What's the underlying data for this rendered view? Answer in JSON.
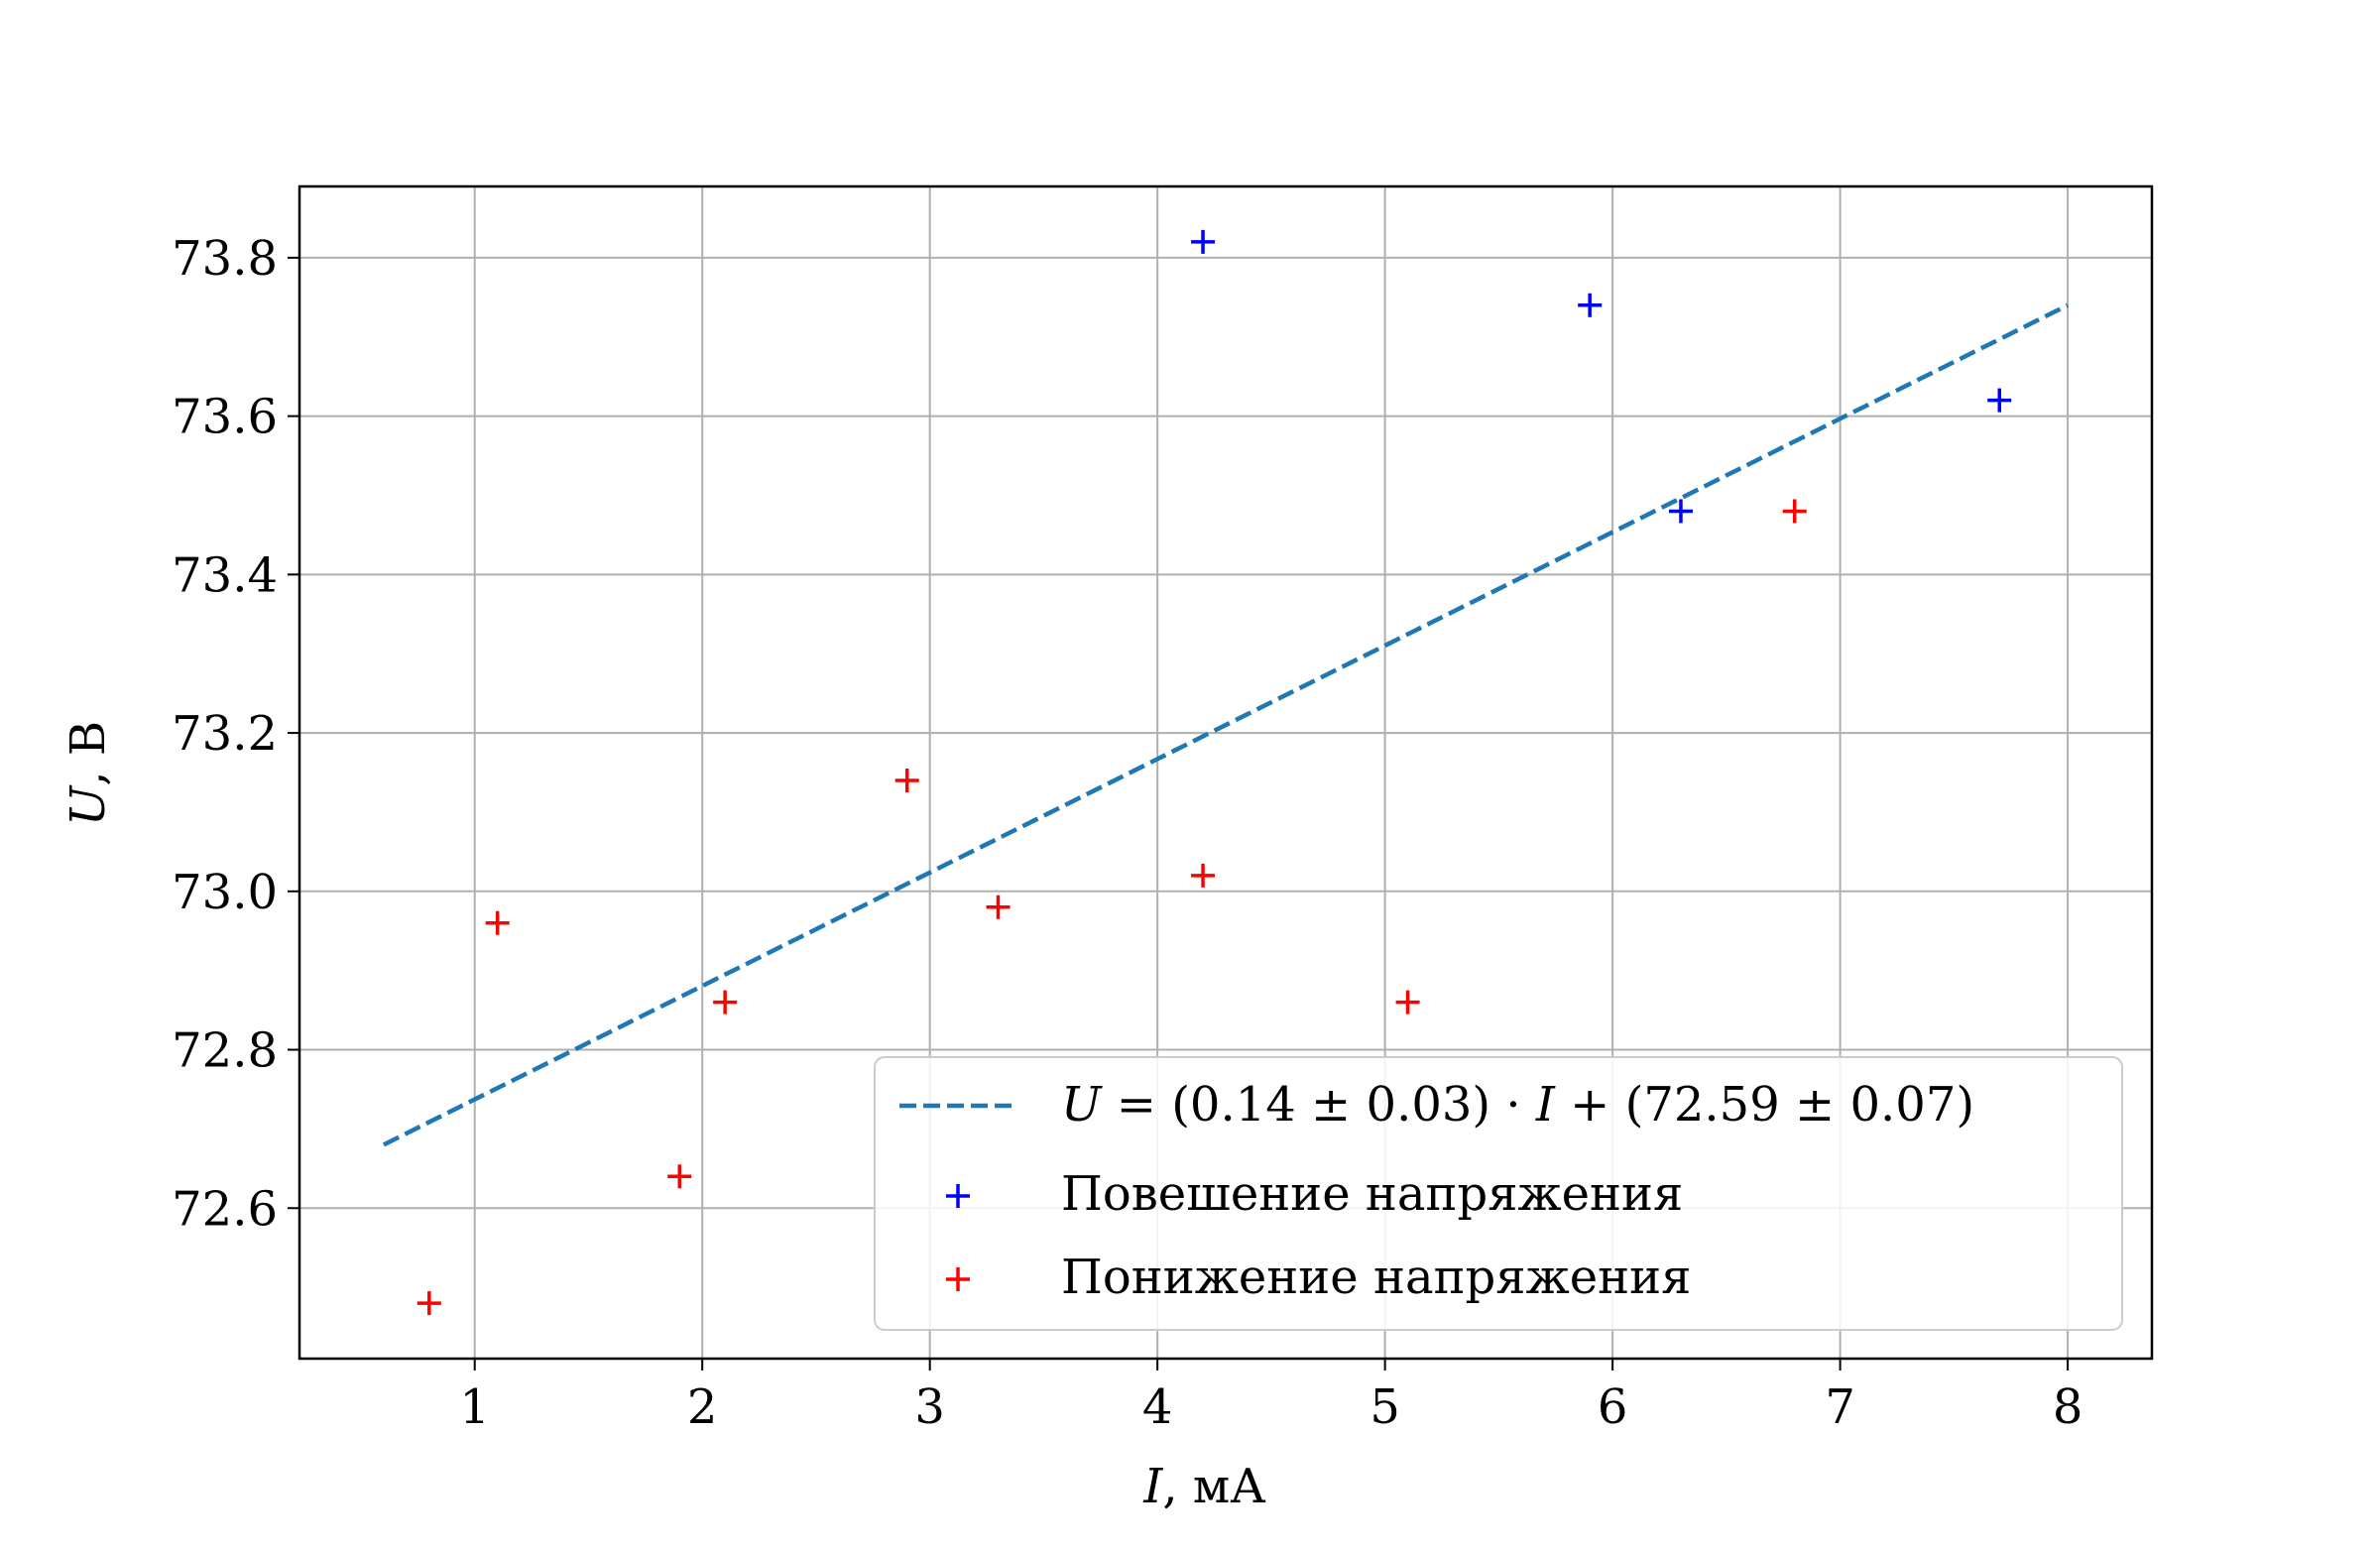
{
  "chart_data": {
    "type": "scatter",
    "xlabel_var": "I",
    "xlabel_unit": ", мА",
    "ylabel_var": "U",
    "ylabel_unit": ", В",
    "xlim": [
      0.23,
      8.37
    ],
    "ylim": [
      72.41,
      73.89
    ],
    "x_ticks": [
      1,
      2,
      3,
      4,
      5,
      6,
      7,
      8
    ],
    "y_ticks": [
      72.6,
      72.8,
      73.0,
      73.2,
      73.4,
      73.6,
      73.8
    ],
    "grid": true,
    "legend_position": "lower-right",
    "fit_line": {
      "style": "dashed",
      "color": "#1f77b4",
      "slope": 0.14,
      "intercept": 72.59,
      "x_range": [
        0.6,
        8.0
      ],
      "y_range": [
        72.68,
        73.74
      ],
      "label": {
        "lhs": "U",
        "eq": " = (0.14 ± 0.03) · ",
        "var": "I",
        "rest": " + (72.59 ± 0.07)"
      }
    },
    "series": [
      {
        "name": "Повешение напряжения",
        "marker": "+",
        "color": "#0000ff",
        "points": [
          {
            "x": 4.2,
            "y": 73.82
          },
          {
            "x": 5.9,
            "y": 73.74
          },
          {
            "x": 6.3,
            "y": 73.48
          },
          {
            "x": 7.7,
            "y": 73.62
          }
        ]
      },
      {
        "name": "Понижение напряжения",
        "marker": "+",
        "color": "#ff0000",
        "points": [
          {
            "x": 0.8,
            "y": 72.48
          },
          {
            "x": 1.1,
            "y": 72.96
          },
          {
            "x": 1.9,
            "y": 72.64
          },
          {
            "x": 2.1,
            "y": 72.86
          },
          {
            "x": 2.9,
            "y": 73.14
          },
          {
            "x": 3.3,
            "y": 72.98
          },
          {
            "x": 4.2,
            "y": 73.02
          },
          {
            "x": 5.1,
            "y": 72.86
          },
          {
            "x": 6.8,
            "y": 73.48
          }
        ]
      }
    ]
  }
}
